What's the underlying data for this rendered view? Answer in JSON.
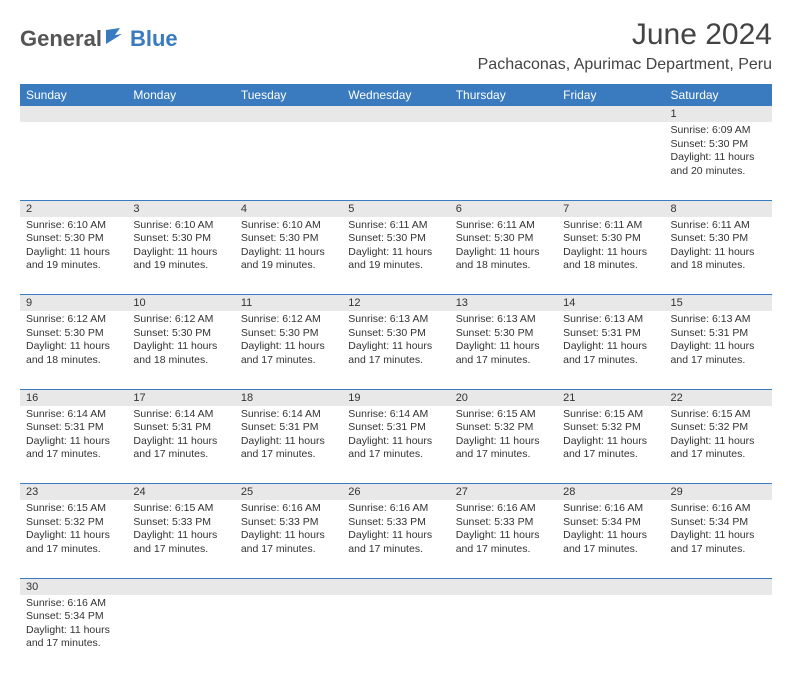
{
  "brand": {
    "general": "General",
    "blue": "Blue"
  },
  "header": {
    "month_title": "June 2024",
    "location": "Pachaconas, Apurimac Department, Peru"
  },
  "colors": {
    "header_bg": "#3a7bbf",
    "daynum_bg": "#e8e8e8",
    "row_border": "#3a7bbf"
  },
  "weekdays": [
    "Sunday",
    "Monday",
    "Tuesday",
    "Wednesday",
    "Thursday",
    "Friday",
    "Saturday"
  ],
  "weeks": [
    [
      null,
      null,
      null,
      null,
      null,
      null,
      {
        "n": "1",
        "sunrise": "Sunrise: 6:09 AM",
        "sunset": "Sunset: 5:30 PM",
        "dl1": "Daylight: 11 hours",
        "dl2": "and 20 minutes."
      }
    ],
    [
      {
        "n": "2",
        "sunrise": "Sunrise: 6:10 AM",
        "sunset": "Sunset: 5:30 PM",
        "dl1": "Daylight: 11 hours",
        "dl2": "and 19 minutes."
      },
      {
        "n": "3",
        "sunrise": "Sunrise: 6:10 AM",
        "sunset": "Sunset: 5:30 PM",
        "dl1": "Daylight: 11 hours",
        "dl2": "and 19 minutes."
      },
      {
        "n": "4",
        "sunrise": "Sunrise: 6:10 AM",
        "sunset": "Sunset: 5:30 PM",
        "dl1": "Daylight: 11 hours",
        "dl2": "and 19 minutes."
      },
      {
        "n": "5",
        "sunrise": "Sunrise: 6:11 AM",
        "sunset": "Sunset: 5:30 PM",
        "dl1": "Daylight: 11 hours",
        "dl2": "and 19 minutes."
      },
      {
        "n": "6",
        "sunrise": "Sunrise: 6:11 AM",
        "sunset": "Sunset: 5:30 PM",
        "dl1": "Daylight: 11 hours",
        "dl2": "and 18 minutes."
      },
      {
        "n": "7",
        "sunrise": "Sunrise: 6:11 AM",
        "sunset": "Sunset: 5:30 PM",
        "dl1": "Daylight: 11 hours",
        "dl2": "and 18 minutes."
      },
      {
        "n": "8",
        "sunrise": "Sunrise: 6:11 AM",
        "sunset": "Sunset: 5:30 PM",
        "dl1": "Daylight: 11 hours",
        "dl2": "and 18 minutes."
      }
    ],
    [
      {
        "n": "9",
        "sunrise": "Sunrise: 6:12 AM",
        "sunset": "Sunset: 5:30 PM",
        "dl1": "Daylight: 11 hours",
        "dl2": "and 18 minutes."
      },
      {
        "n": "10",
        "sunrise": "Sunrise: 6:12 AM",
        "sunset": "Sunset: 5:30 PM",
        "dl1": "Daylight: 11 hours",
        "dl2": "and 18 minutes."
      },
      {
        "n": "11",
        "sunrise": "Sunrise: 6:12 AM",
        "sunset": "Sunset: 5:30 PM",
        "dl1": "Daylight: 11 hours",
        "dl2": "and 17 minutes."
      },
      {
        "n": "12",
        "sunrise": "Sunrise: 6:13 AM",
        "sunset": "Sunset: 5:30 PM",
        "dl1": "Daylight: 11 hours",
        "dl2": "and 17 minutes."
      },
      {
        "n": "13",
        "sunrise": "Sunrise: 6:13 AM",
        "sunset": "Sunset: 5:30 PM",
        "dl1": "Daylight: 11 hours",
        "dl2": "and 17 minutes."
      },
      {
        "n": "14",
        "sunrise": "Sunrise: 6:13 AM",
        "sunset": "Sunset: 5:31 PM",
        "dl1": "Daylight: 11 hours",
        "dl2": "and 17 minutes."
      },
      {
        "n": "15",
        "sunrise": "Sunrise: 6:13 AM",
        "sunset": "Sunset: 5:31 PM",
        "dl1": "Daylight: 11 hours",
        "dl2": "and 17 minutes."
      }
    ],
    [
      {
        "n": "16",
        "sunrise": "Sunrise: 6:14 AM",
        "sunset": "Sunset: 5:31 PM",
        "dl1": "Daylight: 11 hours",
        "dl2": "and 17 minutes."
      },
      {
        "n": "17",
        "sunrise": "Sunrise: 6:14 AM",
        "sunset": "Sunset: 5:31 PM",
        "dl1": "Daylight: 11 hours",
        "dl2": "and 17 minutes."
      },
      {
        "n": "18",
        "sunrise": "Sunrise: 6:14 AM",
        "sunset": "Sunset: 5:31 PM",
        "dl1": "Daylight: 11 hours",
        "dl2": "and 17 minutes."
      },
      {
        "n": "19",
        "sunrise": "Sunrise: 6:14 AM",
        "sunset": "Sunset: 5:31 PM",
        "dl1": "Daylight: 11 hours",
        "dl2": "and 17 minutes."
      },
      {
        "n": "20",
        "sunrise": "Sunrise: 6:15 AM",
        "sunset": "Sunset: 5:32 PM",
        "dl1": "Daylight: 11 hours",
        "dl2": "and 17 minutes."
      },
      {
        "n": "21",
        "sunrise": "Sunrise: 6:15 AM",
        "sunset": "Sunset: 5:32 PM",
        "dl1": "Daylight: 11 hours",
        "dl2": "and 17 minutes."
      },
      {
        "n": "22",
        "sunrise": "Sunrise: 6:15 AM",
        "sunset": "Sunset: 5:32 PM",
        "dl1": "Daylight: 11 hours",
        "dl2": "and 17 minutes."
      }
    ],
    [
      {
        "n": "23",
        "sunrise": "Sunrise: 6:15 AM",
        "sunset": "Sunset: 5:32 PM",
        "dl1": "Daylight: 11 hours",
        "dl2": "and 17 minutes."
      },
      {
        "n": "24",
        "sunrise": "Sunrise: 6:15 AM",
        "sunset": "Sunset: 5:33 PM",
        "dl1": "Daylight: 11 hours",
        "dl2": "and 17 minutes."
      },
      {
        "n": "25",
        "sunrise": "Sunrise: 6:16 AM",
        "sunset": "Sunset: 5:33 PM",
        "dl1": "Daylight: 11 hours",
        "dl2": "and 17 minutes."
      },
      {
        "n": "26",
        "sunrise": "Sunrise: 6:16 AM",
        "sunset": "Sunset: 5:33 PM",
        "dl1": "Daylight: 11 hours",
        "dl2": "and 17 minutes."
      },
      {
        "n": "27",
        "sunrise": "Sunrise: 6:16 AM",
        "sunset": "Sunset: 5:33 PM",
        "dl1": "Daylight: 11 hours",
        "dl2": "and 17 minutes."
      },
      {
        "n": "28",
        "sunrise": "Sunrise: 6:16 AM",
        "sunset": "Sunset: 5:34 PM",
        "dl1": "Daylight: 11 hours",
        "dl2": "and 17 minutes."
      },
      {
        "n": "29",
        "sunrise": "Sunrise: 6:16 AM",
        "sunset": "Sunset: 5:34 PM",
        "dl1": "Daylight: 11 hours",
        "dl2": "and 17 minutes."
      }
    ],
    [
      {
        "n": "30",
        "sunrise": "Sunrise: 6:16 AM",
        "sunset": "Sunset: 5:34 PM",
        "dl1": "Daylight: 11 hours",
        "dl2": "and 17 minutes."
      },
      null,
      null,
      null,
      null,
      null,
      null
    ]
  ]
}
